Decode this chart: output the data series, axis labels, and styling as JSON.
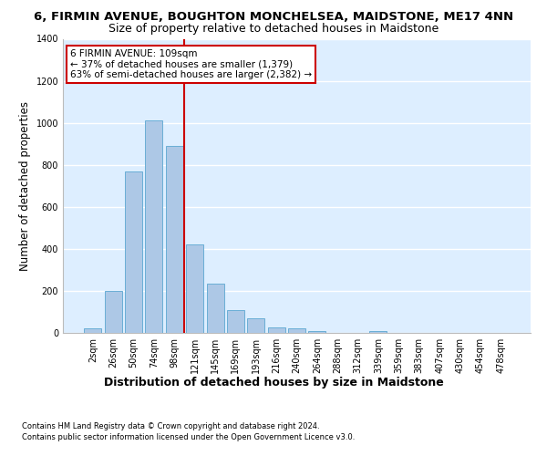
{
  "title": "6, FIRMIN AVENUE, BOUGHTON MONCHELSEA, MAIDSTONE, ME17 4NN",
  "subtitle": "Size of property relative to detached houses in Maidstone",
  "xlabel": "Distribution of detached houses by size in Maidstone",
  "ylabel": "Number of detached properties",
  "categories": [
    "2sqm",
    "26sqm",
    "50sqm",
    "74sqm",
    "98sqm",
    "121sqm",
    "145sqm",
    "169sqm",
    "193sqm",
    "216sqm",
    "240sqm",
    "264sqm",
    "288sqm",
    "312sqm",
    "339sqm",
    "359sqm",
    "383sqm",
    "407sqm",
    "430sqm",
    "454sqm",
    "478sqm"
  ],
  "values": [
    20,
    200,
    770,
    1010,
    890,
    420,
    235,
    110,
    70,
    27,
    20,
    10,
    0,
    0,
    10,
    0,
    0,
    0,
    0,
    0,
    0
  ],
  "bar_color": "#adc8e6",
  "bar_edge_color": "#6aaed6",
  "property_line_x": 4.5,
  "annotation_line1": "6 FIRMIN AVENUE: 109sqm",
  "annotation_line2": "← 37% of detached houses are smaller (1,379)",
  "annotation_line3": "63% of semi-detached houses are larger (2,382) →",
  "vline_color": "#cc0000",
  "ylim": [
    0,
    1400
  ],
  "yticks": [
    0,
    200,
    400,
    600,
    800,
    1000,
    1200,
    1400
  ],
  "footer1": "Contains HM Land Registry data © Crown copyright and database right 2024.",
  "footer2": "Contains public sector information licensed under the Open Government Licence v3.0.",
  "bg_color": "#ddeeff",
  "grid_color": "#ffffff",
  "title_fontsize": 9.5,
  "subtitle_fontsize": 9,
  "tick_fontsize": 7,
  "ylabel_fontsize": 8.5,
  "xlabel_fontsize": 9,
  "annot_fontsize": 7.5,
  "footer_fontsize": 6
}
